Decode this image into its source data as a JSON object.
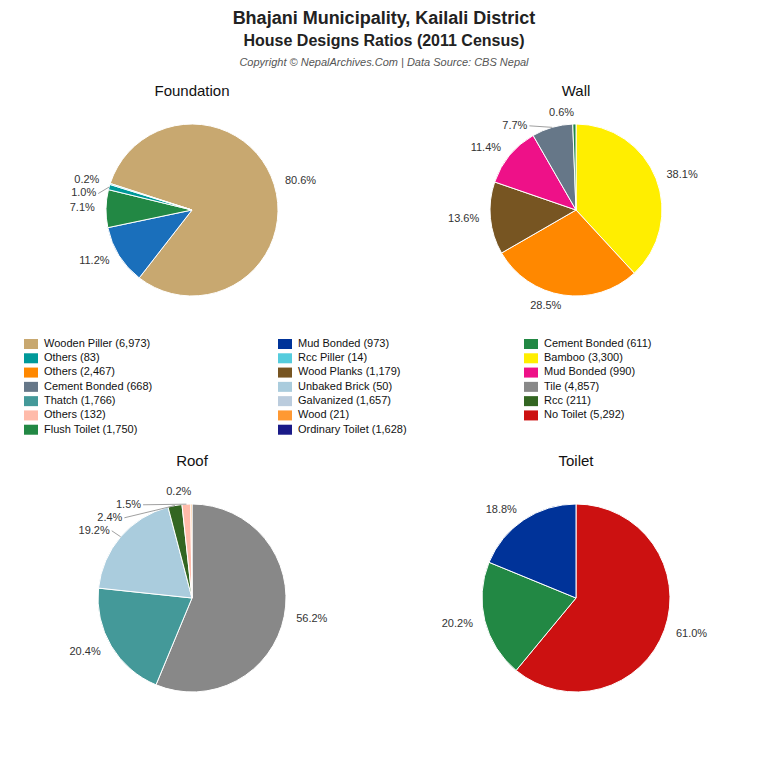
{
  "title": "Bhajani Municipality, Kailali District",
  "subtitle": "House Designs Ratios (2011 Census)",
  "annotations": [
    "Copyright © NepalArchives.Com | Data Source: CBS Nepal"
  ],
  "chart_data": [
    {
      "type": "pie",
      "title": "Foundation",
      "values": [
        80.6,
        11.2,
        7.1,
        1.0,
        0.2
      ],
      "value_labels": [
        "80.6%",
        "11.2%",
        "7.1%",
        "1.0%",
        "0.2%"
      ],
      "colors": [
        "#c8a870",
        "#1a6fbb",
        "#228844",
        "#009999",
        "#55ccdd"
      ],
      "data_labels": true
    },
    {
      "type": "pie",
      "title": "Wall",
      "values": [
        38.1,
        28.5,
        13.6,
        11.4,
        7.7,
        0.6
      ],
      "value_labels": [
        "38.1%",
        "28.5%",
        "13.6%",
        "11.4%",
        "7.7%",
        "0.6%"
      ],
      "colors": [
        "#ffee00",
        "#ff8800",
        "#775522",
        "#ee1188",
        "#667788",
        "#228844"
      ],
      "data_labels": true
    },
    {
      "type": "pie",
      "title": "Roof",
      "values": [
        56.2,
        20.4,
        19.2,
        2.4,
        1.5,
        0.2
      ],
      "value_labels": [
        "56.2%",
        "20.4%",
        "19.2%",
        "2.4%",
        "1.5%",
        "0.2%"
      ],
      "colors": [
        "#888888",
        "#449999",
        "#aaccdd",
        "#336622",
        "#ffbbaa",
        "#ff9933"
      ],
      "data_labels": true
    },
    {
      "type": "pie",
      "title": "Toilet",
      "values": [
        61.0,
        20.2,
        18.8
      ],
      "value_labels": [
        "61.0%",
        "20.2%",
        "18.8%"
      ],
      "colors": [
        "#cc1111",
        "#228844",
        "#003399"
      ],
      "data_labels": true
    }
  ],
  "series": [
    {
      "name": "Wooden Piller (6,973)",
      "color": "#c8a870"
    },
    {
      "name": "Others (83)",
      "color": "#009999"
    },
    {
      "name": "Others (2,467)",
      "color": "#ff8800"
    },
    {
      "name": "Cement Bonded (668)",
      "color": "#667788"
    },
    {
      "name": "Thatch (1,766)",
      "color": "#449999"
    },
    {
      "name": "Others (132)",
      "color": "#ffbbaa"
    },
    {
      "name": "Flush Toilet (1,750)",
      "color": "#228844"
    },
    {
      "name": "Mud Bonded (973)",
      "color": "#003399"
    },
    {
      "name": "Rcc Piller (14)",
      "color": "#55ccdd"
    },
    {
      "name": "Wood Planks (1,179)",
      "color": "#775522"
    },
    {
      "name": "Unbaked Brick (50)",
      "color": "#aaccdd"
    },
    {
      "name": "Galvanized (1,657)",
      "color": "#bbccdd"
    },
    {
      "name": "Wood (21)",
      "color": "#ff9933"
    },
    {
      "name": "Ordinary Toilet (1,628)",
      "color": "#1a1a88"
    },
    {
      "name": "Cement Bonded (611)",
      "color": "#228844"
    },
    {
      "name": "Bamboo (3,300)",
      "color": "#ffee00"
    },
    {
      "name": "Mud Bonded (990)",
      "color": "#ee1188"
    },
    {
      "name": "Tile (4,857)",
      "color": "#888888"
    },
    {
      "name": "Rcc (211)",
      "color": "#336622"
    },
    {
      "name": "No Toilet (5,292)",
      "color": "#cc1111"
    }
  ]
}
